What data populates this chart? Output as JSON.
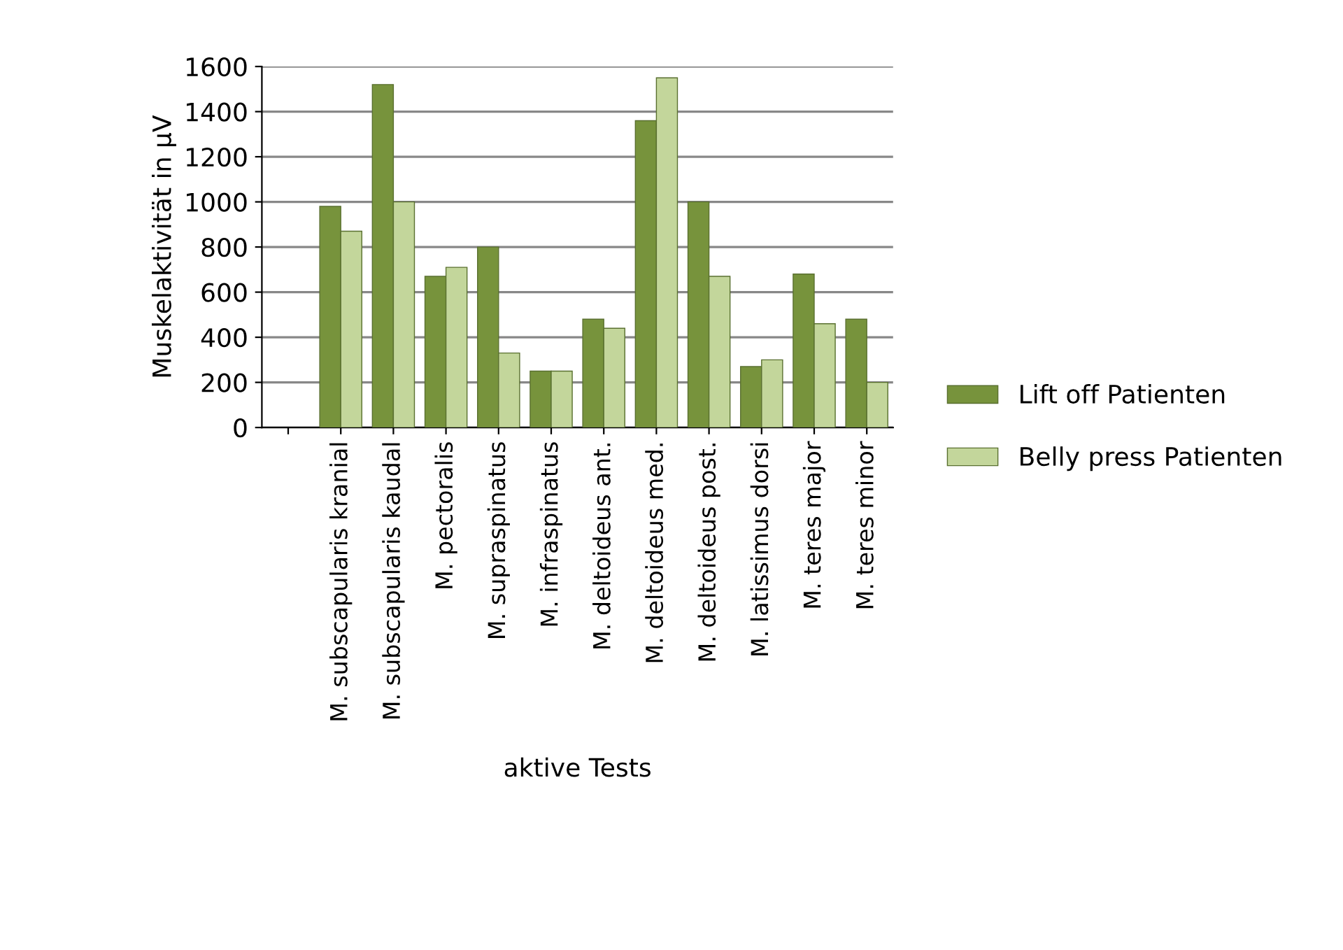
{
  "chart_data": {
    "type": "bar",
    "xlabel": "aktive Tests",
    "ylabel": "Muskelaktivität in µV",
    "categories": [
      null,
      "M. subscapularis kranial",
      "M. subscapularis kaudal",
      "M. pectoralis",
      "M. supraspinatus",
      "M. infraspinatus",
      "M. deltoideus ant.",
      "M. deltoideus med.",
      "M. deltoideus post.",
      "M. latissimus dorsi",
      "M. teres major",
      "M. teres minor"
    ],
    "series": [
      {
        "name": "Lift off Patienten",
        "color": "#77933c",
        "values": [
          null,
          980,
          1520,
          670,
          800,
          250,
          480,
          1360,
          1000,
          270,
          680,
          480
        ]
      },
      {
        "name": "Belly press Patienten",
        "color": "#c3d69b",
        "values": [
          null,
          870,
          1000,
          710,
          330,
          250,
          440,
          1550,
          670,
          300,
          460,
          200
        ]
      }
    ],
    "ylim": [
      0,
      1600
    ],
    "yticks": [
      0,
      200,
      400,
      600,
      800,
      1000,
      1200,
      1400,
      1600
    ],
    "grid": "y",
    "legend": "right"
  }
}
